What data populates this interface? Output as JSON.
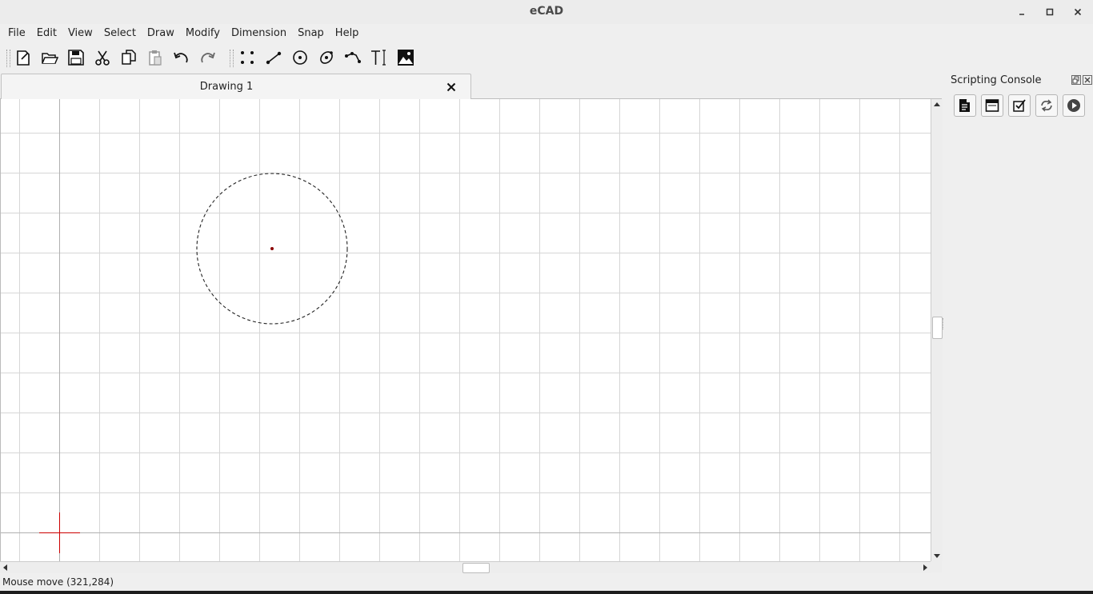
{
  "window": {
    "title": "eCAD",
    "minimize_label": "_",
    "maximize_label": "▫",
    "close_label": "✕"
  },
  "menu": [
    "File",
    "Edit",
    "View",
    "Select",
    "Draw",
    "Modify",
    "Dimension",
    "Snap",
    "Help"
  ],
  "toolbar": {
    "icons": [
      "new-file-icon",
      "open-folder-icon",
      "save-icon",
      "cut-icon",
      "copy-icon",
      "paste-icon",
      "undo-icon",
      "redo-icon",
      "draw-points-icon",
      "draw-line-icon",
      "draw-circle-icon",
      "draw-ellipse-icon",
      "draw-polyline-icon",
      "text-icon",
      "image-icon"
    ]
  },
  "tabs": [
    {
      "label": "Drawing 1",
      "close_label": "✕"
    }
  ],
  "console": {
    "title": "Scripting Console",
    "icons": [
      "new-script-icon",
      "open-script-icon",
      "check-script-icon",
      "reload-script-icon",
      "run-script-icon"
    ]
  },
  "status": {
    "text": "Mouse move (321,284)"
  },
  "colors": {
    "origin_axis": "#cc0000",
    "grid": "#d6d6d6",
    "circle": "#222222",
    "center_point": "#8b0000"
  }
}
